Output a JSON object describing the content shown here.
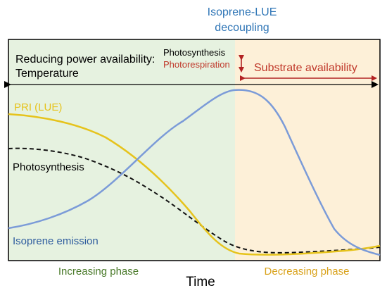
{
  "labels": {
    "header_line1": "Isoprene-LUE",
    "header_line2": "decoupling",
    "drivers_line1": "Reducing power availability:",
    "drivers_line2": "Temperature",
    "photosynthesis_small": "Photosynthesis",
    "photorespiration_small": "Photorespiration",
    "substrate_availability": "Substrate availability",
    "pri_label": "PRI (LUE)",
    "photosynthesis_label": "Photosynthesis",
    "isoprene_label": "Isoprene emission",
    "increasing_phase": "Increasing phase",
    "decreasing_phase": "Decreasing phase",
    "x_axis": "Time"
  },
  "colors": {
    "isoprene": "#7b9bd8",
    "pri": "#e6c31c",
    "photosynthesis": "#111111",
    "increasing_bg": "#e6f2e0",
    "decreasing_bg": "#fdf0d8",
    "header_text": "#2e75b6",
    "photorespiration_text": "#c0392b",
    "red_arrow": "#b22222",
    "increasing_text": "#4a7a2a",
    "decreasing_text": "#d9a21b"
  }
}
